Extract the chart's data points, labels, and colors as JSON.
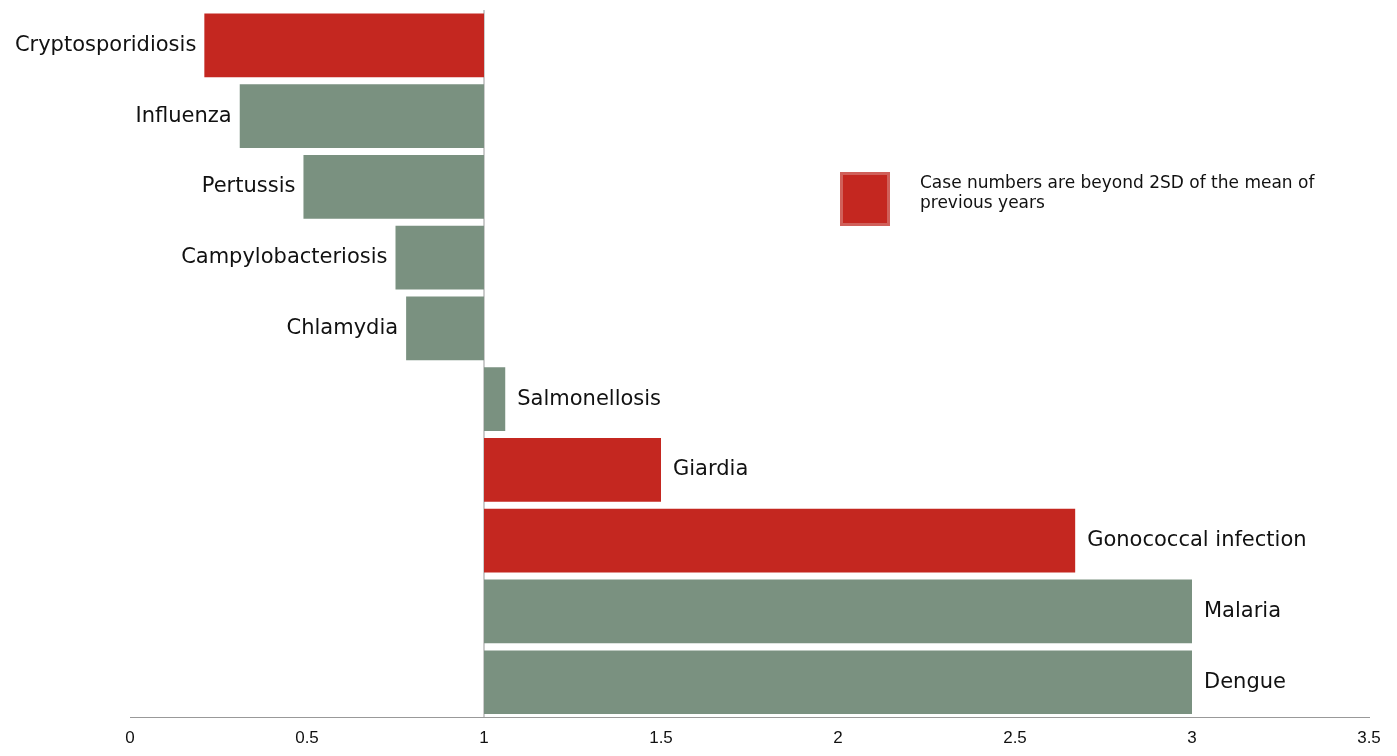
{
  "chart_data": {
    "type": "bar",
    "orientation": "horizontal",
    "categories": [
      "Cryptosporidiosis",
      "Influenza",
      "Pertussis",
      "Campylobacteriosis",
      "Chlamydia",
      "Salmonellosis",
      "Giardia",
      "Gonococcal infection",
      "Malaria",
      "Dengue"
    ],
    "series": [
      {
        "name": "Case numbers are beyond 2SD of the mean of previous years",
        "color": "#c42720",
        "base": [
          1,
          null,
          null,
          null,
          null,
          null,
          1,
          1,
          null,
          null
        ],
        "values": [
          -0.79,
          null,
          null,
          null,
          null,
          null,
          0.5,
          1.67,
          null,
          null
        ]
      },
      {
        "color": "#7a9180",
        "base": [
          null,
          1,
          1,
          1,
          1,
          1,
          null,
          null,
          1,
          1
        ],
        "values": [
          null,
          -0.69,
          -0.51,
          -0.25,
          -0.22,
          0.06,
          null,
          null,
          2,
          2
        ]
      }
    ],
    "xlim": [
      0,
      3.5
    ],
    "xticks": [
      0,
      0.5,
      1,
      1.5,
      2,
      2.5,
      3,
      3.5
    ],
    "ref_lines": [
      {
        "axis": "x",
        "value": 1,
        "color": "#999999"
      }
    ],
    "grid": false,
    "legend": "top right"
  }
}
